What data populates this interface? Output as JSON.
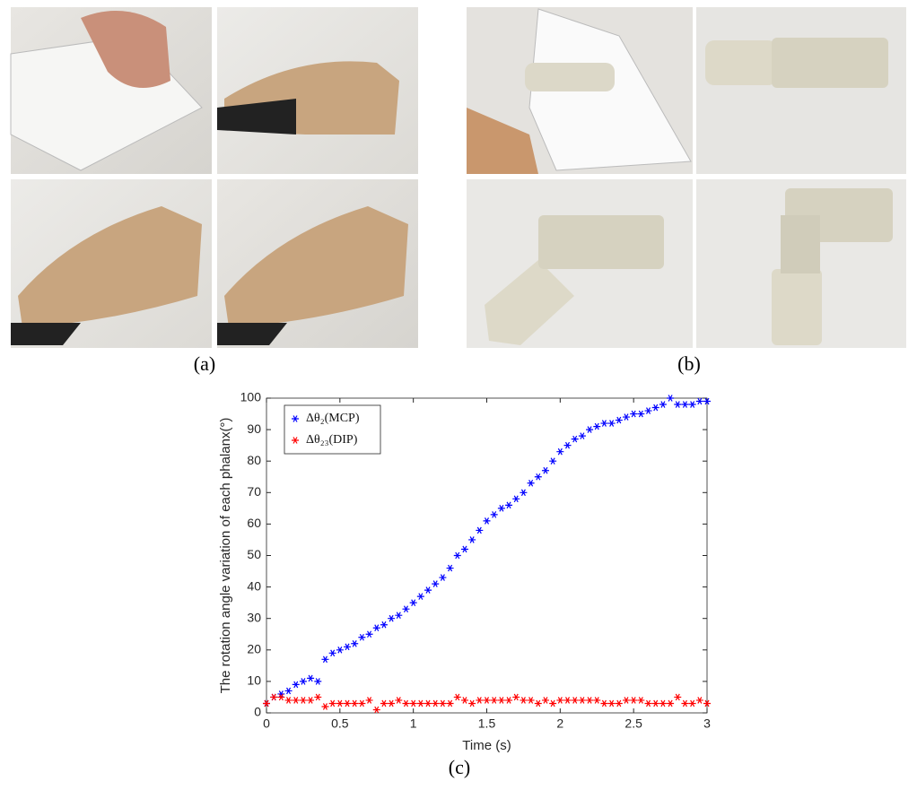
{
  "labels": [
    "(a)",
    "(b)",
    "(c)"
  ],
  "chart_data": {
    "type": "scatter",
    "x_label": "Time (s)",
    "y_label": "The rotation angle variation of each phalanx(°)",
    "x": [
      0,
      0.05,
      0.1,
      0.15,
      0.2,
      0.25,
      0.3,
      0.35,
      0.4,
      0.45,
      0.5,
      0.55,
      0.6,
      0.65,
      0.7,
      0.75,
      0.8,
      0.85,
      0.9,
      0.95,
      1,
      1.05,
      1.1,
      1.15,
      1.2,
      1.25,
      1.3,
      1.35,
      1.4,
      1.45,
      1.5,
      1.55,
      1.6,
      1.65,
      1.7,
      1.75,
      1.8,
      1.85,
      1.9,
      1.95,
      2,
      2.05,
      2.1,
      2.15,
      2.2,
      2.25,
      2.3,
      2.35,
      2.4,
      2.45,
      2.5,
      2.55,
      2.6,
      2.65,
      2.7,
      2.75,
      2.8,
      2.85,
      2.9,
      2.95,
      3
    ],
    "series": [
      {
        "name": "Δθ₂(MCP)",
        "color": "#0000ff",
        "values": [
          3,
          5,
          6,
          7,
          9,
          10,
          11,
          10,
          17,
          19,
          20,
          21,
          22,
          24,
          25,
          27,
          28,
          30,
          31,
          33,
          35,
          37,
          39,
          41,
          43,
          46,
          50,
          52,
          55,
          58,
          61,
          63,
          65,
          66,
          68,
          70,
          73,
          75,
          77,
          80,
          83,
          85,
          87,
          88,
          90,
          91,
          92,
          92,
          93,
          94,
          95,
          95,
          96,
          97,
          98,
          100,
          98,
          98,
          98,
          99,
          99
        ]
      },
      {
        "name": "Δθ₂₃(DIP)",
        "color": "#ff0000",
        "values": [
          3,
          5,
          5,
          4,
          4,
          4,
          4,
          5,
          2,
          3,
          3,
          3,
          3,
          3,
          4,
          1,
          3,
          3,
          4,
          3,
          3,
          3,
          3,
          3,
          3,
          3,
          5,
          4,
          3,
          4,
          4,
          4,
          4,
          4,
          5,
          4,
          4,
          3,
          4,
          3,
          4,
          4,
          4,
          4,
          4,
          4,
          3,
          3,
          3,
          4,
          4,
          4,
          3,
          3,
          3,
          3,
          5,
          3,
          3,
          4,
          3
        ]
      }
    ],
    "xlim": [
      0,
      3
    ],
    "xticks": [
      0,
      0.5,
      1,
      1.5,
      2,
      2.5,
      3
    ],
    "ylim": [
      0,
      100
    ],
    "yticks": [
      0,
      10,
      20,
      30,
      40,
      50,
      60,
      70,
      80,
      90,
      100
    ],
    "legend": "upper-left"
  }
}
